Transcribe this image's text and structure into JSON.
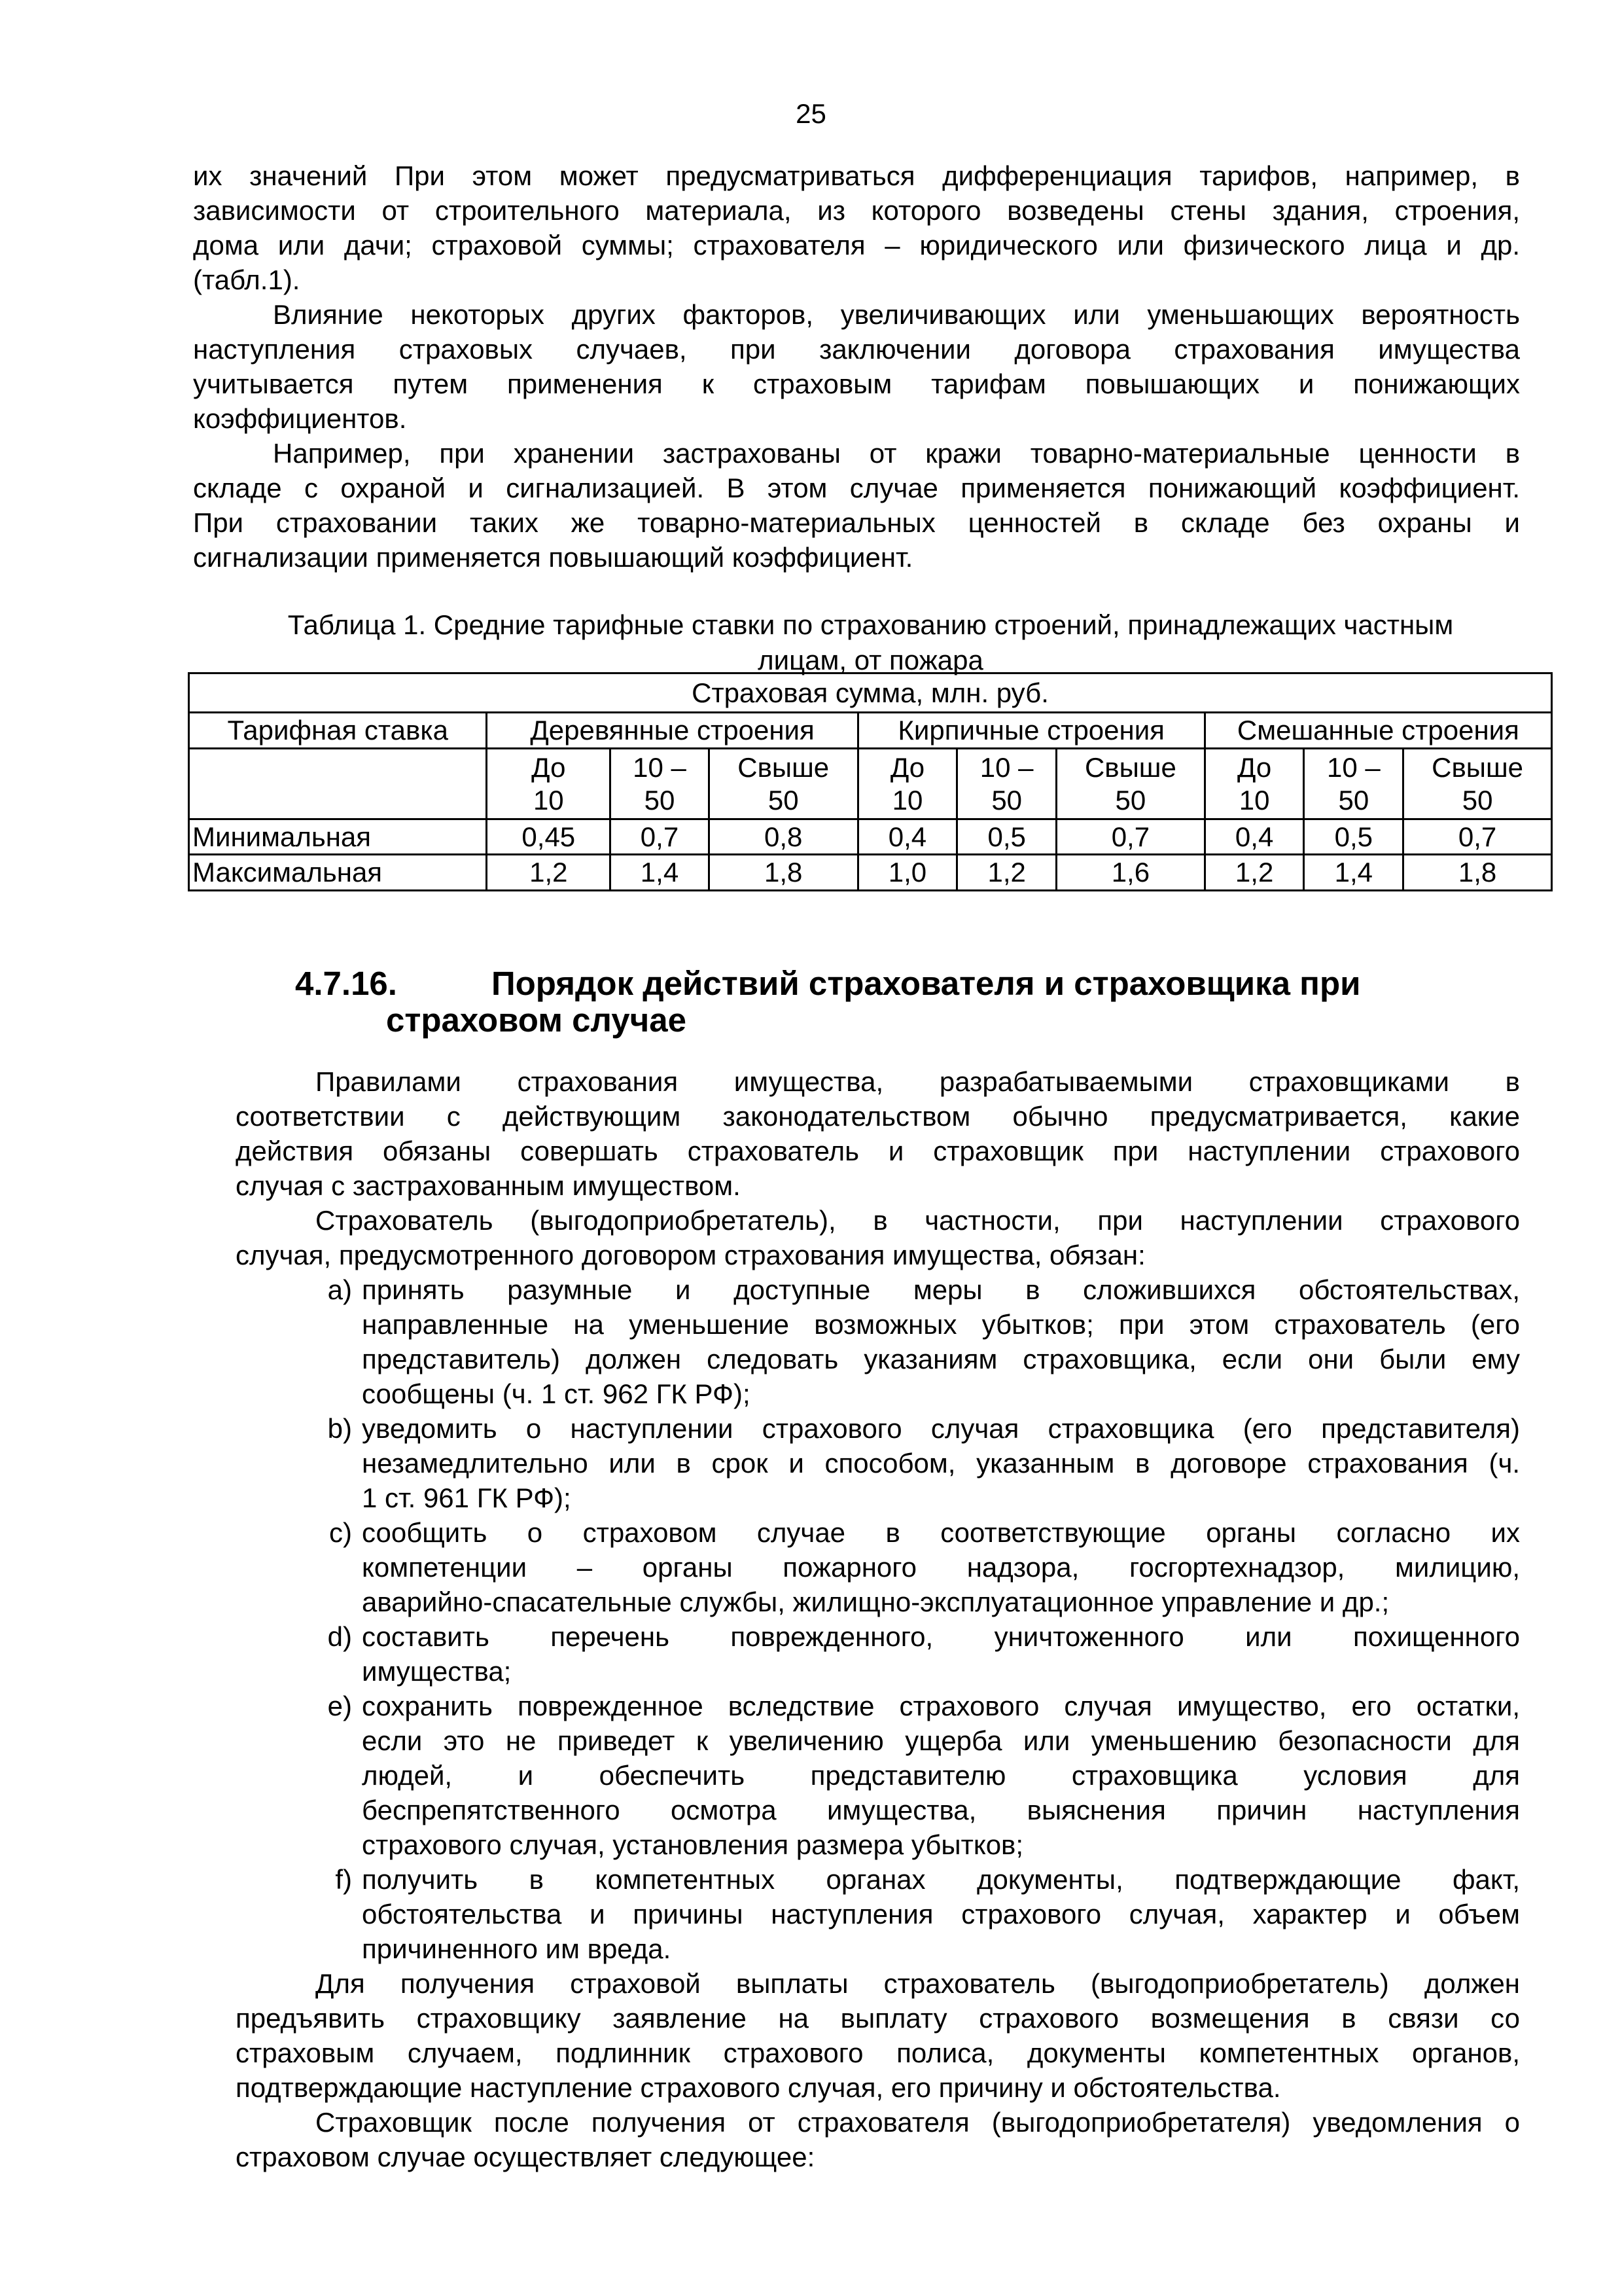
{
  "page_number": "25",
  "intro_paragraphs": [
    {
      "indent": false,
      "lines": [
        "их значений При этом может предусматриваться дифференциация тарифов, например, в",
        "зависимости от строительного материала, из которого возведены стены здания, строения,",
        "дома или дачи; страховой суммы; страхователя – юридического или физического лица и др.",
        "(табл.1)."
      ]
    },
    {
      "indent": true,
      "lines": [
        "Влияние некоторых других факторов, увеличивающих или уменьшающих вероятность",
        "наступления страховых случаев, при заключении договора страхования имущества",
        "учитывается путем применения к страховым тарифам повышающих и понижающих",
        "коэффициентов."
      ]
    },
    {
      "indent": true,
      "lines": [
        "Например, при хранении застрахованы от кражи товарно-материальные ценности в",
        "складе с охраной и сигнализацией. В этом случае применяется понижающий коэффициент.",
        "При страховании таких же товарно-материальных ценностей в складе без охраны и",
        "сигнализации применяется повышающий коэффициент."
      ]
    }
  ],
  "table": {
    "caption_line1": "Таблица 1. Средние тарифные ставки по страхованию строений, принадлежащих частным",
    "caption_line2": "лицам, от пожара",
    "super_header": "Страховая сумма, млн. руб.",
    "row_header": "Тарифная ставка",
    "groups": [
      "Деревянные строения",
      "Кирпичные строения",
      "Смешанные строения"
    ],
    "sub_headers": [
      [
        "До",
        "10"
      ],
      [
        "10 –",
        "50"
      ],
      [
        "Свыше",
        "50"
      ],
      [
        "До",
        "10"
      ],
      [
        "10 –",
        "50"
      ],
      [
        "Свыше",
        "50"
      ],
      [
        "До",
        "10"
      ],
      [
        "10 –",
        "50"
      ],
      [
        "Свыше",
        "50"
      ]
    ],
    "rows": [
      {
        "label": "Минимальная",
        "values": [
          "0,45",
          "0,7",
          "0,8",
          "0,4",
          "0,5",
          "0,7",
          "0,4",
          "0,5",
          "0,7"
        ]
      },
      {
        "label": "Максимальная",
        "values": [
          "1,2",
          "1,4",
          "1,8",
          "1,0",
          "1,2",
          "1,6",
          "1,2",
          "1,4",
          "1,8"
        ]
      }
    ]
  },
  "section": {
    "number": "4.7.16.",
    "title_line1": "Порядок действий страхователя и страховщика при",
    "title_line2": "страховом случае",
    "para1": {
      "indent": true,
      "lines": [
        "Правилами страхования имущества, разрабатываемыми страховщиками в",
        "соответствии с действующим законодательством обычно предусматривается, какие",
        "действия обязаны совершать страхователь и страховщик при наступлении страхового",
        "случая с застрахованным имуществом."
      ]
    },
    "para2": {
      "indent": true,
      "lines": [
        "Страхователь (выгодоприобретатель), в частности, при наступлении страхового",
        "случая, предусмотренного договором страхования имущества, обязан:"
      ]
    },
    "list": [
      {
        "marker": "a)",
        "lines": [
          "принять разумные и доступные меры в сложившихся обстоятельствах,",
          "направленные на уменьшение возможных убытков; при этом страхователь (его",
          "представитель) должен следовать указаниям страховщика, если они были ему",
          "сообщены (ч. 1 ст. 962 ГК РФ);"
        ]
      },
      {
        "marker": "b)",
        "lines": [
          "уведомить о наступлении страхового случая страховщика (его представителя)",
          "незамедлительно или в срок и способом, указанным в договоре страхования (ч.",
          "1 ст. 961 ГК РФ);"
        ]
      },
      {
        "marker": "c)",
        "lines": [
          "сообщить о страховом случае в соответствующие органы согласно их",
          "компетенции – органы пожарного надзора, госгортехнадзор, милицию,",
          "аварийно-спасательные службы, жилищно-эксплуатационное управление и др.;"
        ]
      },
      {
        "marker": "d)",
        "lines": [
          "составить перечень поврежденного, уничтоженного или похищенного",
          "имущества;"
        ]
      },
      {
        "marker": "e)",
        "lines": [
          "сохранить поврежденное вследствие страхового случая имущество, его остатки,",
          "если это не приведет к увеличению ущерба или уменьшению безопасности для",
          "людей, и обеспечить представителю страховщика условия для",
          "беспрепятственного осмотра имущества, выяснения причин наступления",
          "страхового случая, установления размера убытков;"
        ]
      },
      {
        "marker": "f)",
        "lines": [
          "получить в компетентных органах документы, подтверждающие факт,",
          "обстоятельства и причины наступления страхового случая, характер и объем",
          "причиненного им вреда."
        ]
      }
    ],
    "para3": {
      "indent": true,
      "lines": [
        "Для получения страховой выплаты страхователь (выгодоприобретатель) должен",
        "предъявить страховщику заявление на выплату страхового возмещения в связи со",
        "страховым случаем, подлинник страхового полиса, документы компетентных органов,",
        "подтверждающие наступление страхового случая, его причину и обстоятельства."
      ]
    },
    "para4": {
      "indent": true,
      "lines": [
        "Страховщик после получения от страхователя (выгодоприобретателя) уведомления о",
        "страховом случае осуществляет следующее:"
      ]
    }
  }
}
